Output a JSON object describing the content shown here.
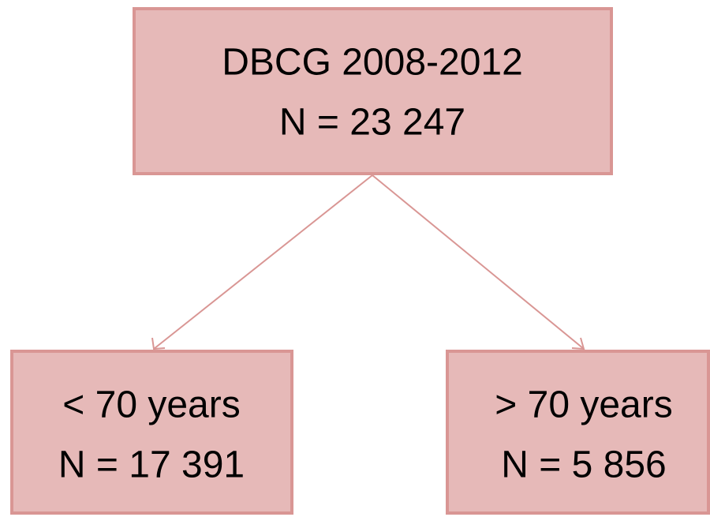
{
  "nodes": [
    {
      "lines": [
        "DBCG 2008-2012",
        "N = 23 247"
      ]
    },
    {
      "lines": [
        "< 70 years",
        "N = 17 391"
      ]
    },
    {
      "lines": [
        "> 70 years",
        "N = 5 856"
      ]
    }
  ]
}
